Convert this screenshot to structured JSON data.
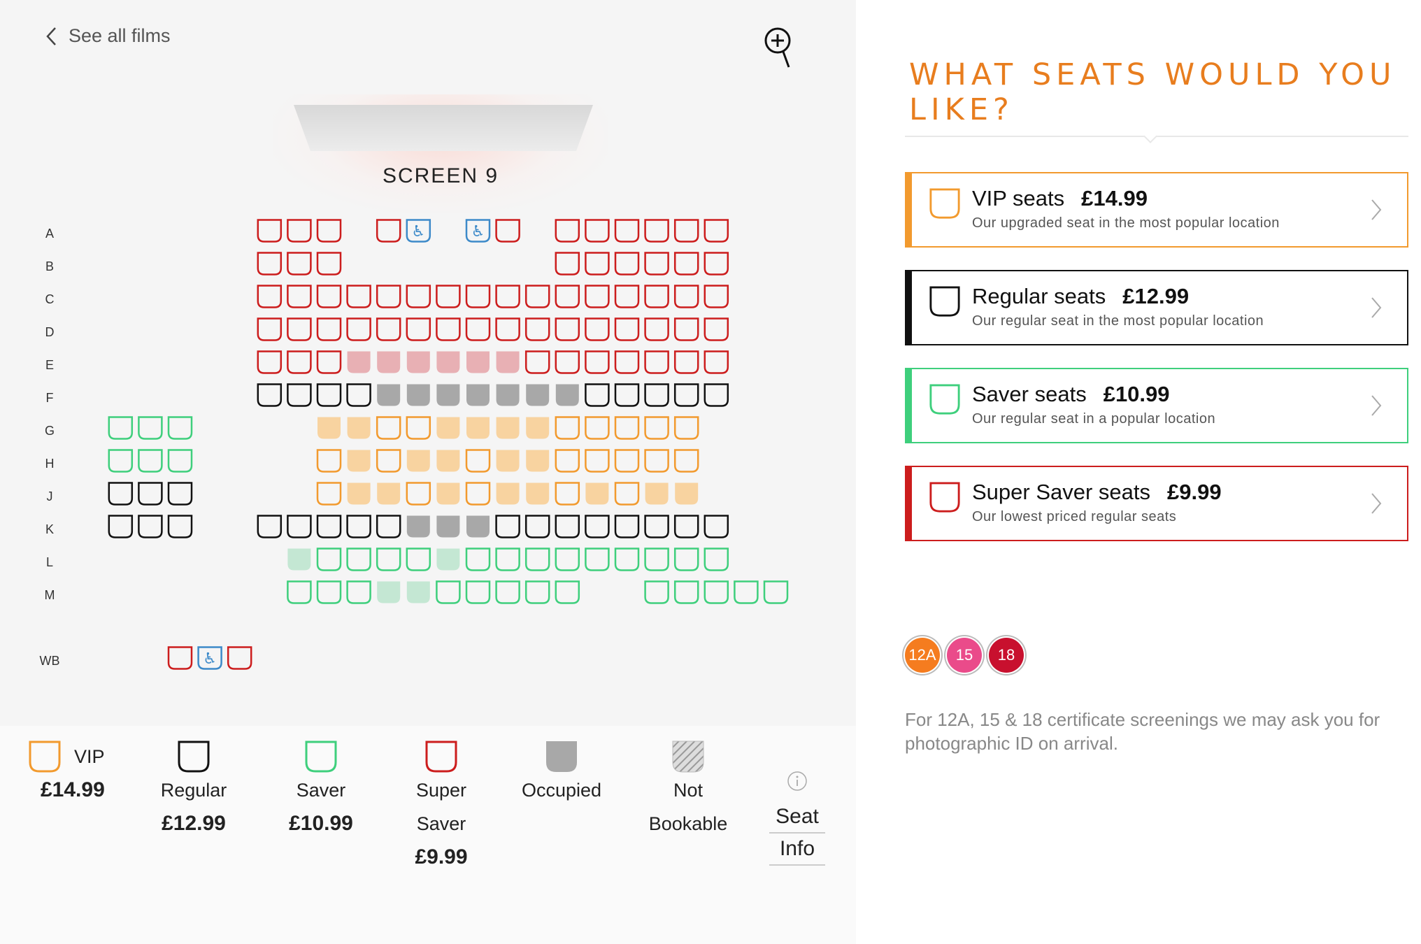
{
  "nav": {
    "back_label": "See all films"
  },
  "screen": {
    "label": "SCREEN 9"
  },
  "colors": {
    "vip": "#f29a2e",
    "regular": "#111111",
    "saver": "#3ecf7c",
    "super_saver": "#cc1d1d",
    "occupied": "#a8a8a8",
    "vip_occupied": "#f8d3a0",
    "red_occupied": "#e8b0b4",
    "green_occupied": "#c4e7d3",
    "wheelchair": "#3d8ac9",
    "title": "#e87d1e"
  },
  "rows": [
    "A",
    "B",
    "C",
    "D",
    "E",
    "F",
    "G",
    "H",
    "J",
    "K",
    "L",
    "M",
    "WB"
  ],
  "seat_rows": [
    {
      "row": "A",
      "blocks": [
        {
          "start": 8,
          "seats": [
            "r",
            "r",
            "r"
          ]
        },
        {
          "start": 12,
          "seats": [
            "r",
            "w"
          ]
        },
        {
          "start": 15,
          "seats": [
            "w",
            "r"
          ]
        },
        {
          "start": 18,
          "seats": [
            "r",
            "r",
            "r",
            "r",
            "r",
            "r"
          ]
        }
      ]
    },
    {
      "row": "B",
      "blocks": [
        {
          "start": 8,
          "seats": [
            "r",
            "r",
            "r"
          ]
        },
        {
          "start": 18,
          "seats": [
            "r",
            "r",
            "r",
            "r",
            "r",
            "r"
          ]
        }
      ]
    },
    {
      "row": "C",
      "blocks": [
        {
          "start": 8,
          "seats": [
            "r",
            "r",
            "r",
            "r",
            "r",
            "r",
            "r",
            "r",
            "r",
            "r",
            "r",
            "r",
            "r",
            "r",
            "r",
            "r"
          ]
        }
      ]
    },
    {
      "row": "D",
      "blocks": [
        {
          "start": 8,
          "seats": [
            "r",
            "r",
            "r",
            "r",
            "r",
            "r",
            "r",
            "r",
            "r",
            "r",
            "r",
            "r",
            "r",
            "r",
            "r",
            "r"
          ]
        }
      ]
    },
    {
      "row": "E",
      "blocks": [
        {
          "start": 8,
          "seats": [
            "r",
            "r",
            "r",
            "ro",
            "ro",
            "ro",
            "ro",
            "ro",
            "ro",
            "r",
            "r",
            "r",
            "r",
            "r",
            "r",
            "r"
          ]
        }
      ]
    },
    {
      "row": "F",
      "blocks": [
        {
          "start": 8,
          "seats": [
            "k",
            "k",
            "k",
            "k",
            "ko",
            "ko",
            "ko",
            "ko",
            "ko",
            "ko",
            "ko",
            "k",
            "k",
            "k",
            "k",
            "k"
          ]
        }
      ]
    },
    {
      "row": "G",
      "blocks": [
        {
          "start": 3,
          "seats": [
            "g",
            "g",
            "g"
          ]
        },
        {
          "start": 10,
          "seats": [
            "vo",
            "vo",
            "v",
            "v",
            "vo",
            "vo",
            "vo",
            "vo",
            "v",
            "v",
            "v",
            "v",
            "v"
          ]
        }
      ]
    },
    {
      "row": "H",
      "blocks": [
        {
          "start": 3,
          "seats": [
            "g",
            "g",
            "g"
          ]
        },
        {
          "start": 10,
          "seats": [
            "v",
            "vo",
            "v",
            "vo",
            "vo",
            "v",
            "vo",
            "vo",
            "v",
            "v",
            "v",
            "v",
            "v"
          ]
        }
      ]
    },
    {
      "row": "J",
      "blocks": [
        {
          "start": 3,
          "seats": [
            "k",
            "k",
            "k"
          ]
        },
        {
          "start": 10,
          "seats": [
            "v",
            "vo",
            "vo",
            "v",
            "vo",
            "v",
            "vo",
            "vo",
            "v",
            "vo",
            "v",
            "vo",
            "vo"
          ]
        }
      ]
    },
    {
      "row": "K",
      "blocks": [
        {
          "start": 3,
          "seats": [
            "k",
            "k",
            "k"
          ]
        },
        {
          "start": 8,
          "seats": [
            "k",
            "k",
            "k",
            "k",
            "k",
            "ko",
            "ko",
            "ko",
            "k",
            "k",
            "k",
            "k",
            "k",
            "k",
            "k",
            "k"
          ]
        }
      ]
    },
    {
      "row": "L",
      "blocks": [
        {
          "start": 9,
          "seats": [
            "go",
            "g",
            "g",
            "g",
            "g",
            "go",
            "g",
            "g",
            "g",
            "g",
            "g",
            "g",
            "g",
            "g",
            "g"
          ]
        }
      ]
    },
    {
      "row": "M",
      "blocks": [
        {
          "start": 9,
          "seats": [
            "g",
            "g",
            "g",
            "go",
            "go",
            "g",
            "g",
            "g",
            "g",
            "g"
          ]
        },
        {
          "start": 21,
          "seats": [
            "g",
            "g",
            "g",
            "g",
            "g"
          ]
        }
      ]
    },
    {
      "row": "WB",
      "blocks": [
        {
          "start": 5,
          "seats": [
            "r",
            "w",
            "r"
          ]
        }
      ]
    }
  ],
  "legend": [
    {
      "key": "vip",
      "name": "VIP",
      "price": "£14.99"
    },
    {
      "key": "regular",
      "name": "Regular",
      "price": "£12.99"
    },
    {
      "key": "saver",
      "name": "Saver",
      "price": "£10.99"
    },
    {
      "key": "super_saver",
      "name_line1": "Super",
      "name_line2": "Saver",
      "price": "£9.99"
    },
    {
      "key": "occupied",
      "name": "Occupied"
    },
    {
      "key": "not_bookable",
      "name_line1": "Not",
      "name_line2": "Bookable"
    }
  ],
  "seat_info": {
    "line1": "Seat",
    "line2": "Info",
    "icon": "info-icon"
  },
  "panel": {
    "title": "WHAT SEATS WOULD YOU LIKE?",
    "options": [
      {
        "name": "VIP seats",
        "price": "£14.99",
        "desc": "Our upgraded seat in the most popular location",
        "color": "#f29a2e"
      },
      {
        "name": "Regular seats",
        "price": "£12.99",
        "desc": "Our regular seat in the most popular location",
        "color": "#111111"
      },
      {
        "name": "Saver seats",
        "price": "£10.99",
        "desc": "Our regular seat in a popular location",
        "color": "#3ecf7c"
      },
      {
        "name": "Super Saver seats",
        "price": "£9.99",
        "desc": "Our lowest priced regular seats",
        "color": "#cc1d1d"
      }
    ],
    "certificates": [
      {
        "label": "12A",
        "color": "#f57c1f"
      },
      {
        "label": "15",
        "color": "#ea4b8a"
      },
      {
        "label": "18",
        "color": "#c8102e"
      }
    ],
    "notice": "For 12A, 15 & 18 certificate screenings we may ask you for photographic ID on arrival."
  }
}
